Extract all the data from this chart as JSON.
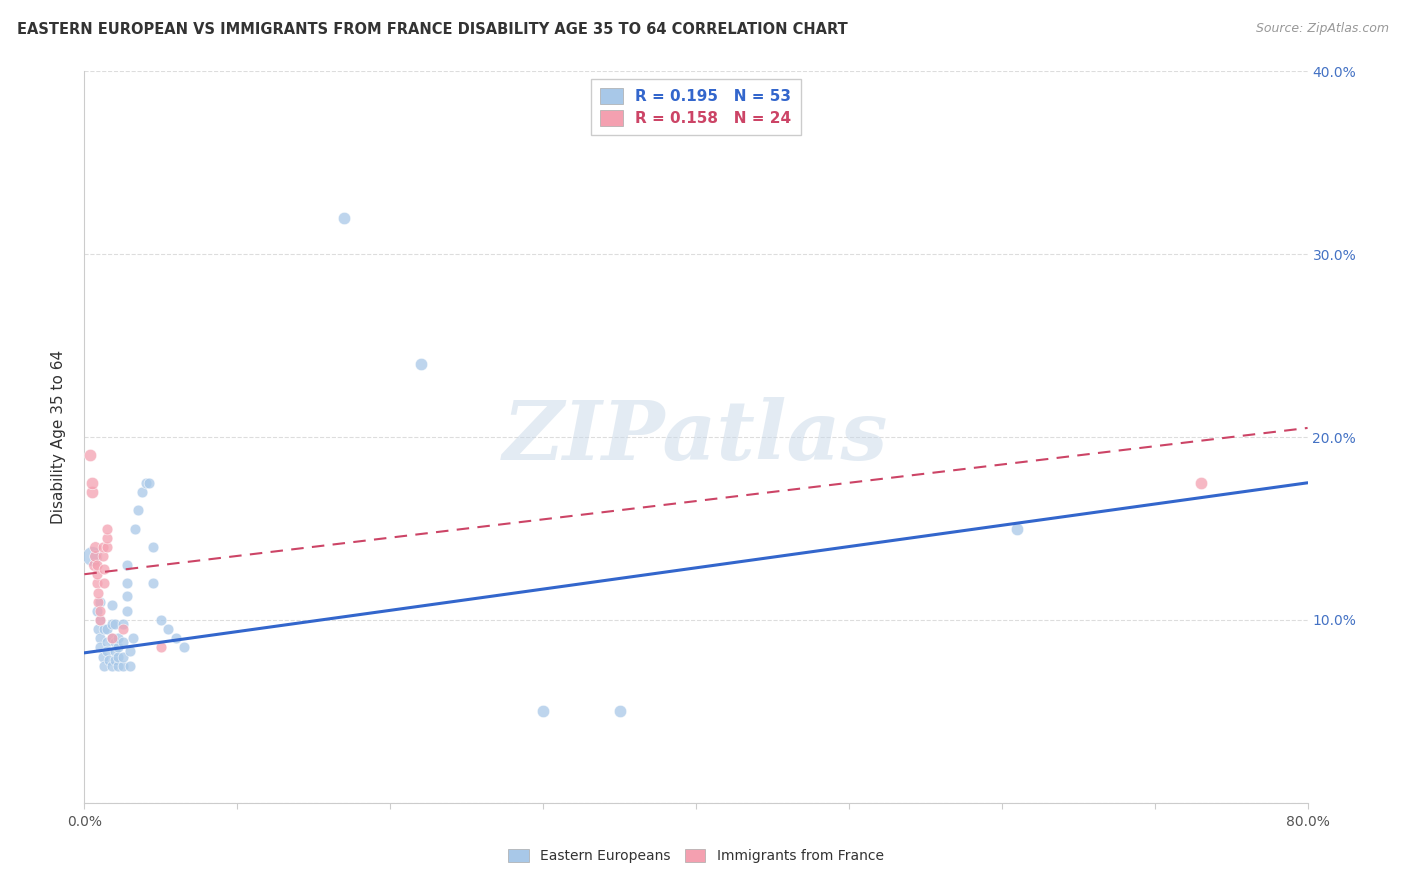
{
  "title": "EASTERN EUROPEAN VS IMMIGRANTS FROM FRANCE DISABILITY AGE 35 TO 64 CORRELATION CHART",
  "source": "Source: ZipAtlas.com",
  "ylabel": "Disability Age 35 to 64",
  "xlim": [
    0.0,
    0.8
  ],
  "ylim": [
    0.0,
    0.4
  ],
  "xticks": [
    0.0,
    0.1,
    0.2,
    0.3,
    0.4,
    0.5,
    0.6,
    0.7,
    0.8
  ],
  "xticklabels": [
    "0.0%",
    "",
    "",
    "",
    "",
    "",
    "",
    "",
    "80.0%"
  ],
  "yticks": [
    0.0,
    0.1,
    0.2,
    0.3,
    0.4
  ],
  "yticklabels_right": [
    "",
    "10.0%",
    "20.0%",
    "30.0%",
    "40.0%"
  ],
  "blue_R": "0.195",
  "blue_N": "53",
  "pink_R": "0.158",
  "pink_N": "24",
  "blue_color": "#A8C8E8",
  "pink_color": "#F4A0B0",
  "blue_line_color": "#3366CC",
  "pink_line_color": "#CC4466",
  "legend_label_blue": "Eastern Europeans",
  "legend_label_pink": "Immigrants from France",
  "blue_scatter": [
    [
      0.005,
      0.135
    ],
    [
      0.008,
      0.105
    ],
    [
      0.009,
      0.095
    ],
    [
      0.01,
      0.09
    ],
    [
      0.01,
      0.085
    ],
    [
      0.01,
      0.1
    ],
    [
      0.01,
      0.11
    ],
    [
      0.012,
      0.08
    ],
    [
      0.013,
      0.095
    ],
    [
      0.013,
      0.075
    ],
    [
      0.015,
      0.095
    ],
    [
      0.015,
      0.088
    ],
    [
      0.015,
      0.083
    ],
    [
      0.016,
      0.078
    ],
    [
      0.018,
      0.075
    ],
    [
      0.018,
      0.09
    ],
    [
      0.018,
      0.098
    ],
    [
      0.018,
      0.108
    ],
    [
      0.02,
      0.078
    ],
    [
      0.02,
      0.083
    ],
    [
      0.02,
      0.088
    ],
    [
      0.02,
      0.098
    ],
    [
      0.022,
      0.075
    ],
    [
      0.022,
      0.08
    ],
    [
      0.022,
      0.085
    ],
    [
      0.022,
      0.09
    ],
    [
      0.025,
      0.075
    ],
    [
      0.025,
      0.08
    ],
    [
      0.025,
      0.088
    ],
    [
      0.025,
      0.098
    ],
    [
      0.028,
      0.105
    ],
    [
      0.028,
      0.113
    ],
    [
      0.028,
      0.12
    ],
    [
      0.028,
      0.13
    ],
    [
      0.03,
      0.075
    ],
    [
      0.03,
      0.083
    ],
    [
      0.032,
      0.09
    ],
    [
      0.033,
      0.15
    ],
    [
      0.035,
      0.16
    ],
    [
      0.038,
      0.17
    ],
    [
      0.04,
      0.175
    ],
    [
      0.042,
      0.175
    ],
    [
      0.045,
      0.14
    ],
    [
      0.045,
      0.12
    ],
    [
      0.05,
      0.1
    ],
    [
      0.055,
      0.095
    ],
    [
      0.06,
      0.09
    ],
    [
      0.065,
      0.085
    ],
    [
      0.17,
      0.32
    ],
    [
      0.22,
      0.24
    ],
    [
      0.3,
      0.05
    ],
    [
      0.35,
      0.05
    ],
    [
      0.61,
      0.15
    ]
  ],
  "blue_scatter_sizes": [
    200,
    60,
    60,
    60,
    60,
    60,
    60,
    60,
    60,
    60,
    60,
    60,
    60,
    60,
    60,
    60,
    60,
    60,
    60,
    60,
    60,
    60,
    60,
    60,
    60,
    60,
    60,
    60,
    60,
    60,
    60,
    60,
    60,
    60,
    60,
    60,
    60,
    60,
    60,
    60,
    60,
    60,
    60,
    60,
    60,
    60,
    60,
    60,
    80,
    80,
    80,
    80,
    80
  ],
  "pink_scatter": [
    [
      0.004,
      0.19
    ],
    [
      0.005,
      0.17
    ],
    [
      0.005,
      0.175
    ],
    [
      0.006,
      0.13
    ],
    [
      0.007,
      0.135
    ],
    [
      0.007,
      0.14
    ],
    [
      0.008,
      0.12
    ],
    [
      0.008,
      0.125
    ],
    [
      0.008,
      0.13
    ],
    [
      0.009,
      0.11
    ],
    [
      0.009,
      0.115
    ],
    [
      0.01,
      0.1
    ],
    [
      0.01,
      0.105
    ],
    [
      0.012,
      0.135
    ],
    [
      0.012,
      0.14
    ],
    [
      0.013,
      0.12
    ],
    [
      0.013,
      0.128
    ],
    [
      0.015,
      0.14
    ],
    [
      0.015,
      0.145
    ],
    [
      0.015,
      0.15
    ],
    [
      0.018,
      0.09
    ],
    [
      0.025,
      0.095
    ],
    [
      0.05,
      0.085
    ],
    [
      0.73,
      0.175
    ]
  ],
  "pink_scatter_sizes": [
    80,
    80,
    80,
    70,
    70,
    70,
    60,
    60,
    60,
    60,
    60,
    60,
    60,
    60,
    60,
    60,
    60,
    60,
    60,
    60,
    60,
    60,
    60,
    80
  ],
  "blue_trend_x": [
    0.0,
    0.8
  ],
  "blue_trend_y": [
    0.082,
    0.175
  ],
  "pink_trend_x": [
    0.0,
    0.8
  ],
  "pink_trend_y": [
    0.125,
    0.205
  ],
  "watermark_text": "ZIPatlas",
  "grid_color": "#DDDDDD",
  "background_color": "#FFFFFF"
}
